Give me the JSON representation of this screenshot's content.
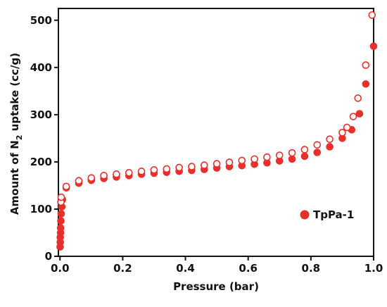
{
  "chart_data": {
    "type": "scatter",
    "x_label": "Pressure (bar)",
    "y_label": "Amount of N",
    "y_label_sub": "2",
    "y_label_end": " uptake (cc/g)",
    "xlim": [
      -0.005,
      1.0
    ],
    "ylim": [
      0,
      525
    ],
    "xticks": [
      {
        "value": 0,
        "label": "0.0"
      },
      0.2,
      0.4,
      0.6,
      0.8,
      {
        "value": 1,
        "label": "1.0"
      }
    ],
    "yticks": [
      0,
      100,
      200,
      300,
      400,
      500
    ],
    "legend": "right",
    "series": [
      {
        "name": "TpPa-1",
        "color": "#e8302a",
        "filled": true,
        "x": [
          0.0005,
          0.001,
          0.001,
          0.002,
          0.002,
          0.003,
          0.004,
          0.006,
          0.008,
          0.02,
          0.06,
          0.1,
          0.14,
          0.18,
          0.22,
          0.26,
          0.3,
          0.34,
          0.38,
          0.42,
          0.46,
          0.5,
          0.54,
          0.58,
          0.62,
          0.66,
          0.7,
          0.74,
          0.78,
          0.82,
          0.86,
          0.9,
          0.93,
          0.955,
          0.975,
          1.0
        ],
        "values": [
          20,
          30,
          40,
          50,
          60,
          75,
          90,
          105,
          120,
          145,
          155,
          161,
          165,
          168,
          171,
          174,
          176,
          178,
          180,
          182,
          184,
          187,
          190,
          192,
          195,
          198,
          202,
          206,
          212,
          220,
          232,
          250,
          268,
          302,
          365,
          445
        ]
      },
      {
        "color": "#e8302a",
        "filled": false,
        "x": [
          0.003,
          0.004,
          0.02,
          0.06,
          0.1,
          0.14,
          0.18,
          0.22,
          0.26,
          0.3,
          0.34,
          0.38,
          0.42,
          0.46,
          0.5,
          0.54,
          0.58,
          0.62,
          0.66,
          0.7,
          0.74,
          0.78,
          0.82,
          0.86,
          0.9,
          0.915,
          0.935,
          0.95,
          0.975,
          0.995
        ],
        "values": [
          115,
          125,
          148,
          160,
          166,
          171,
          174,
          177,
          180,
          183,
          185,
          188,
          190,
          193,
          196,
          199,
          203,
          206,
          210,
          214,
          219,
          226,
          236,
          248,
          262,
          273,
          296,
          335,
          405,
          511
        ]
      }
    ]
  }
}
